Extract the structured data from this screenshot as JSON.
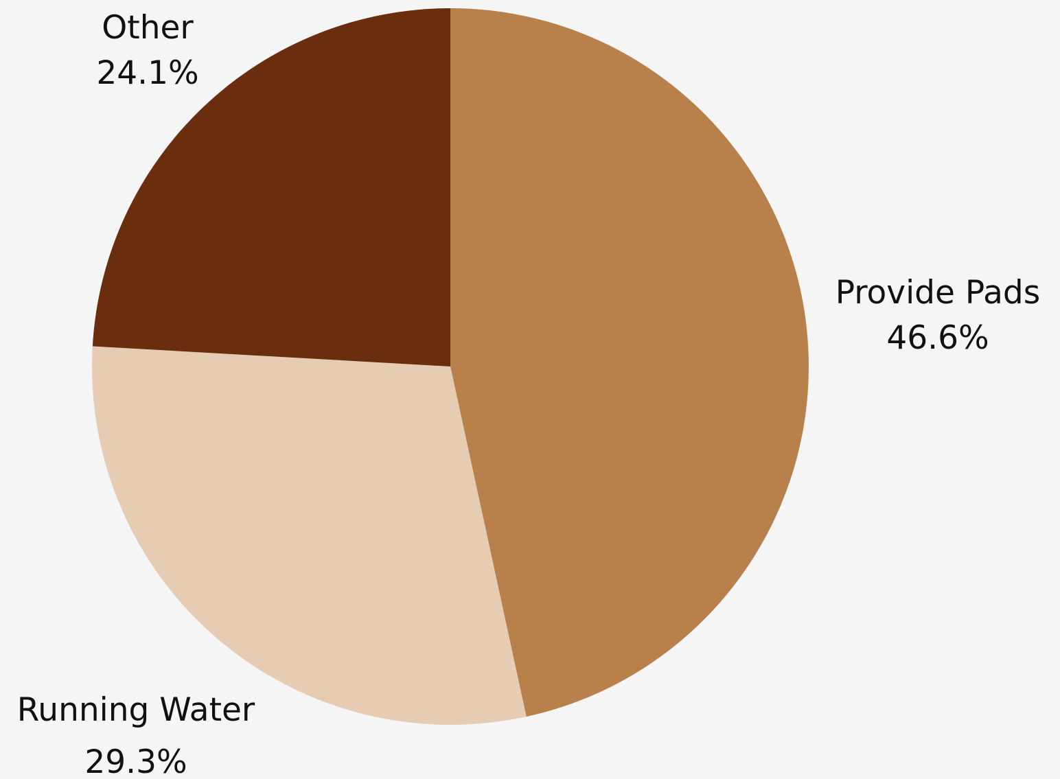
{
  "chart_data": {
    "type": "pie",
    "title": "",
    "slices": [
      {
        "name": "Provide Pads",
        "value": 46.6,
        "label": "46.6%",
        "color": "#b8804a"
      },
      {
        "name": "Running Water",
        "value": 29.3,
        "label": "29.3%",
        "color": "#e6ccb3"
      },
      {
        "name": "Other",
        "value": 24.1,
        "label": "24.1%",
        "color": "#6a2e0e"
      }
    ],
    "start_angle": "12 o'clock",
    "direction": "clockwise",
    "legend": "none"
  }
}
